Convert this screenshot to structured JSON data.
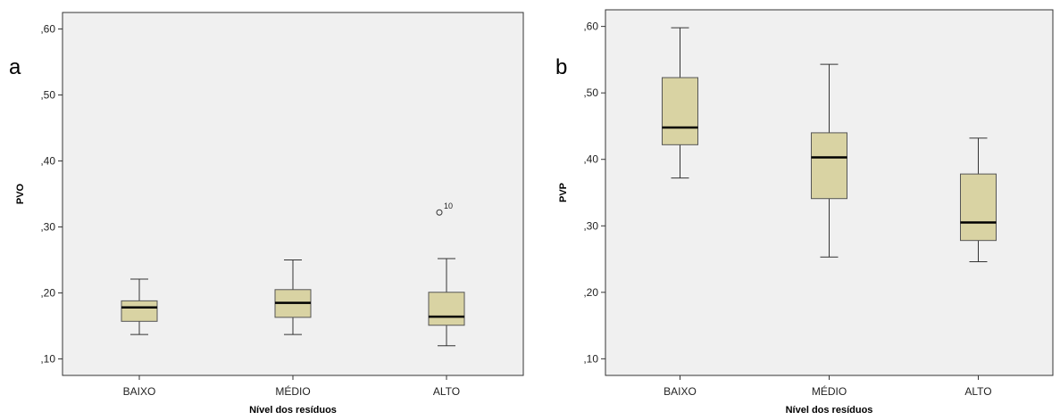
{
  "colors": {
    "plot_bg": "#f0f0f0",
    "box_fill": "#d9d3a3",
    "box_stroke": "#555555",
    "median": "#000000"
  },
  "chart_data": [
    {
      "type": "box",
      "panel_label": "a",
      "xlabel": "Nível dos resíduos",
      "ylabel": "PVO",
      "ylim": [
        0.075,
        0.625
      ],
      "yticks": [
        0.1,
        0.2,
        0.3,
        0.4,
        0.5,
        0.6
      ],
      "ytick_labels": [
        ",10",
        ",20",
        ",30",
        ",40",
        ",50",
        ",60"
      ],
      "categories": [
        "BAIXO",
        "MÉDIO",
        "ALTO"
      ],
      "boxes": [
        {
          "category": "BAIXO",
          "whisker_low": 0.137,
          "q1": 0.157,
          "median": 0.178,
          "q3": 0.188,
          "whisker_high": 0.221
        },
        {
          "category": "MÉDIO",
          "whisker_low": 0.137,
          "q1": 0.163,
          "median": 0.185,
          "q3": 0.205,
          "whisker_high": 0.25
        },
        {
          "category": "ALTO",
          "whisker_low": 0.12,
          "q1": 0.151,
          "median": 0.164,
          "q3": 0.201,
          "whisker_high": 0.252
        }
      ],
      "outliers": [
        {
          "category": "ALTO",
          "value": 0.322,
          "label": "10"
        }
      ]
    },
    {
      "type": "box",
      "panel_label": "b",
      "xlabel": "Nível dos resíduos",
      "ylabel": "PVP",
      "ylim": [
        0.075,
        0.625
      ],
      "yticks": [
        0.1,
        0.2,
        0.3,
        0.4,
        0.5,
        0.6
      ],
      "ytick_labels": [
        ",10",
        ",20",
        ",30",
        ",40",
        ",50",
        ",60"
      ],
      "categories": [
        "BAIXO",
        "MÉDIO",
        "ALTO"
      ],
      "boxes": [
        {
          "category": "BAIXO",
          "whisker_low": 0.372,
          "q1": 0.422,
          "median": 0.448,
          "q3": 0.523,
          "whisker_high": 0.598
        },
        {
          "category": "MÉDIO",
          "whisker_low": 0.253,
          "q1": 0.341,
          "median": 0.403,
          "q3": 0.44,
          "whisker_high": 0.543
        },
        {
          "category": "ALTO",
          "whisker_low": 0.246,
          "q1": 0.278,
          "median": 0.305,
          "q3": 0.378,
          "whisker_high": 0.432
        }
      ],
      "outliers": []
    }
  ]
}
